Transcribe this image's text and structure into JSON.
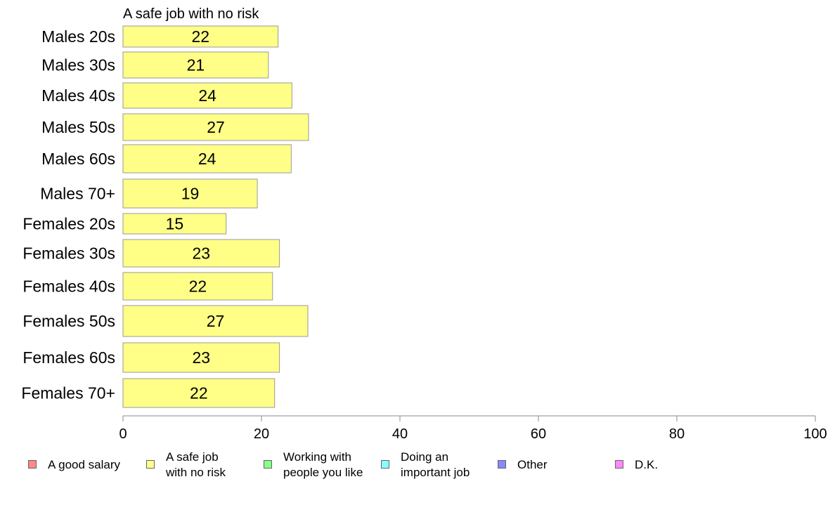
{
  "chart_data": {
    "type": "bar",
    "orientation": "horizontal",
    "title": "A safe job with no risk",
    "categories": [
      "Males 20s",
      "Males 30s",
      "Males 40s",
      "Males 50s",
      "Males 60s",
      "Males 70+",
      "Females 20s",
      "Females 30s",
      "Females 40s",
      "Females 50s",
      "Females 60s",
      "Females 70+"
    ],
    "values": [
      22.4,
      21,
      24.4,
      26.8,
      24.3,
      19.4,
      14.9,
      22.6,
      21.6,
      26.7,
      22.6,
      21.9
    ],
    "data_labels": [
      "22",
      "21",
      "24",
      "27",
      "24",
      "19",
      "15",
      "23",
      "22",
      "27",
      "23",
      "22"
    ],
    "xlim": [
      0,
      100
    ],
    "x_ticks": [
      "0",
      "20",
      "40",
      "60",
      "80",
      "100"
    ],
    "grid": false,
    "bar_color": "#ffff88",
    "bar_border_color": "#999999"
  },
  "legend": {
    "placement": "bottom",
    "items": [
      {
        "label": "A good salary",
        "color": "#ff8888"
      },
      {
        "label": "A safe job\nwith no risk",
        "color": "#ffff88"
      },
      {
        "label": "Working with\npeople you like",
        "color": "#88ff88"
      },
      {
        "label": "Doing an\nimportant job",
        "color": "#88ffff"
      },
      {
        "label": "Other",
        "color": "#8888ff"
      },
      {
        "label": "D.K.",
        "color": "#ff88ff"
      }
    ]
  }
}
